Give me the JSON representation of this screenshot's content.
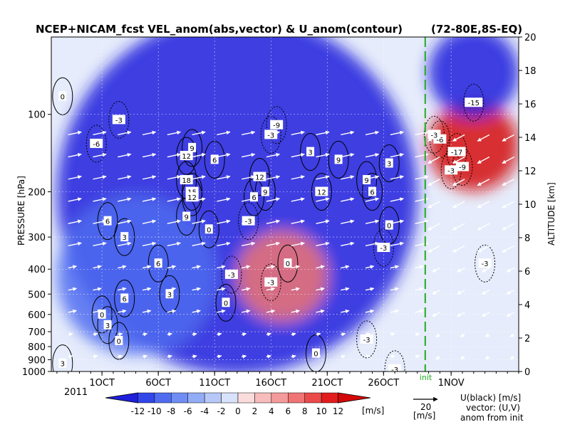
{
  "chart_data": {
    "type": "heatmap",
    "title": "NCEP+NICAM_fcst VEL_anom(abs,vector) & U_anom(contour)",
    "region": "(72-80E,8S-EQ)",
    "xlabel": "",
    "ylabel": "PRESSURE [hPa]",
    "ylabel_right": "ALTITUDE [km]",
    "x_ticks": [
      "1OCT",
      "6OCT",
      "11OCT",
      "16OCT",
      "21OCT",
      "26OCT",
      "1NOV"
    ],
    "x_tick_days": [
      0,
      5,
      10,
      15,
      20,
      25,
      31
    ],
    "x_year": "2011",
    "x_range_days": [
      -4.5,
      37
    ],
    "init_label": "init",
    "init_day": 28.7,
    "pressure_ticks": [
      {
        "label": "100",
        "p": 100
      },
      {
        "label": "200",
        "p": 200
      },
      {
        "label": "300",
        "p": 300
      },
      {
        "label": "400",
        "p": 400
      },
      {
        "label": "500",
        "p": 500
      },
      {
        "label": "600",
        "p": 600
      },
      {
        "label": "700",
        "p": 700
      },
      {
        "label": "800",
        "p": 800
      },
      {
        "label": "900",
        "p": 900
      },
      {
        "label": "1000",
        "p": 1000
      }
    ],
    "pressure_range": [
      1000,
      50
    ],
    "altitude_ticks": [
      "0",
      "2",
      "4",
      "6",
      "8",
      "10",
      "12",
      "14",
      "16",
      "18",
      "20"
    ],
    "altitude_range_km": [
      0,
      20
    ],
    "colorbar": {
      "labels": [
        "-12",
        "-10",
        "-8",
        "-6",
        "-4",
        "-2",
        "0",
        "2",
        "4",
        "6",
        "8",
        "10",
        "12"
      ],
      "unit": "[m/s]",
      "colors": [
        "#1f1fdc",
        "#3246e8",
        "#4f6cf0",
        "#6f8df4",
        "#93acf6",
        "#b7c8f8",
        "#d8e2fb",
        "#fbdcdc",
        "#f8bcbc",
        "#f49a9a",
        "#f07474",
        "#ea4a4a",
        "#e21c1c",
        "#d40808"
      ]
    },
    "vector_ref": {
      "value": "20",
      "unit": "[m/s]"
    },
    "legend_notes": [
      "U(black) [m/s]",
      "vector: (U,V)",
      "anom from init"
    ],
    "anomaly_regions": [
      {
        "sign": "negative",
        "day_range": [
          -4,
          28
        ],
        "p_range": [
          130,
          320
        ],
        "peak_m_s": -16
      },
      {
        "sign": "negative",
        "day_range": [
          -4,
          10
        ],
        "p_range": [
          300,
          600
        ],
        "peak_m_s": -8
      },
      {
        "sign": "positive",
        "day_range": [
          12,
          20
        ],
        "p_range": [
          280,
          650
        ],
        "peak_m_s": 5
      },
      {
        "sign": "positive",
        "day_range": [
          29,
          37
        ],
        "p_range": [
          55,
          320
        ],
        "peak_m_s": 15
      },
      {
        "sign": "negative",
        "day_range": [
          29,
          37
        ],
        "p_range": [
          50,
          95
        ],
        "peak_m_s": -12
      }
    ],
    "contour_labels": [
      {
        "text": "0",
        "day": -3.5,
        "p": 85
      },
      {
        "text": "-6",
        "day": -0.5,
        "p": 130
      },
      {
        "text": "-3",
        "day": 1.5,
        "p": 105
      },
      {
        "text": "9",
        "day": 8.0,
        "p": 135
      },
      {
        "text": "12",
        "day": 7.5,
        "p": 145
      },
      {
        "text": "6",
        "day": 10.0,
        "p": 150
      },
      {
        "text": "18",
        "day": 7.5,
        "p": 180
      },
      {
        "text": "15",
        "day": 8.0,
        "p": 200
      },
      {
        "text": "12",
        "day": 8.0,
        "p": 210
      },
      {
        "text": "9",
        "day": 7.5,
        "p": 250
      },
      {
        "text": "12",
        "day": 14.0,
        "p": 175
      },
      {
        "text": "9",
        "day": 14.5,
        "p": 200
      },
      {
        "text": "6",
        "day": 13.5,
        "p": 210
      },
      {
        "text": "-9",
        "day": 15.5,
        "p": 110
      },
      {
        "text": "-3",
        "day": 15.0,
        "p": 120
      },
      {
        "text": "3",
        "day": 18.5,
        "p": 140
      },
      {
        "text": "9",
        "day": 21.0,
        "p": 150
      },
      {
        "text": "12",
        "day": 19.5,
        "p": 200
      },
      {
        "text": "9",
        "day": 23.5,
        "p": 180
      },
      {
        "text": "6",
        "day": 24.0,
        "p": 200
      },
      {
        "text": "3",
        "day": 25.5,
        "p": 155
      },
      {
        "text": "-6",
        "day": 30.0,
        "p": 125
      },
      {
        "text": "-17",
        "day": 31.5,
        "p": 140
      },
      {
        "text": "-15",
        "day": 33.0,
        "p": 90
      },
      {
        "text": "-9",
        "day": 32.0,
        "p": 160
      },
      {
        "text": "-3",
        "day": 31.0,
        "p": 165
      },
      {
        "text": "-3",
        "day": 34.0,
        "p": 380
      },
      {
        "text": "6",
        "day": 0.5,
        "p": 260
      },
      {
        "text": "3",
        "day": 2.0,
        "p": 300
      },
      {
        "text": "6",
        "day": 5.0,
        "p": 380
      },
      {
        "text": "3",
        "day": 6.0,
        "p": 500
      },
      {
        "text": "0",
        "day": 9.5,
        "p": 280
      },
      {
        "text": "-3",
        "day": 13.0,
        "p": 260
      },
      {
        "text": "-3",
        "day": 15.0,
        "p": 450
      },
      {
        "text": "0",
        "day": 16.5,
        "p": 380
      },
      {
        "text": "-3",
        "day": 25.0,
        "p": 330
      },
      {
        "text": "0",
        "day": 25.5,
        "p": 270
      },
      {
        "text": "-3",
        "day": 23.5,
        "p": 750
      },
      {
        "text": "0",
        "day": 19.0,
        "p": 850
      },
      {
        "text": "3",
        "day": -3.5,
        "p": 930
      },
      {
        "text": "0",
        "day": 1.5,
        "p": 760
      },
      {
        "text": "3",
        "day": 0.5,
        "p": 660
      },
      {
        "text": "0",
        "day": 0.0,
        "p": 600
      },
      {
        "text": "6",
        "day": 2.0,
        "p": 520
      },
      {
        "text": "-3",
        "day": 11.5,
        "p": 420
      },
      {
        "text": "0",
        "day": 11.0,
        "p": 540
      },
      {
        "text": "-3",
        "day": 26.0,
        "p": 980
      },
      {
        "text": "-3",
        "day": 29.5,
        "p": 120
      }
    ]
  }
}
